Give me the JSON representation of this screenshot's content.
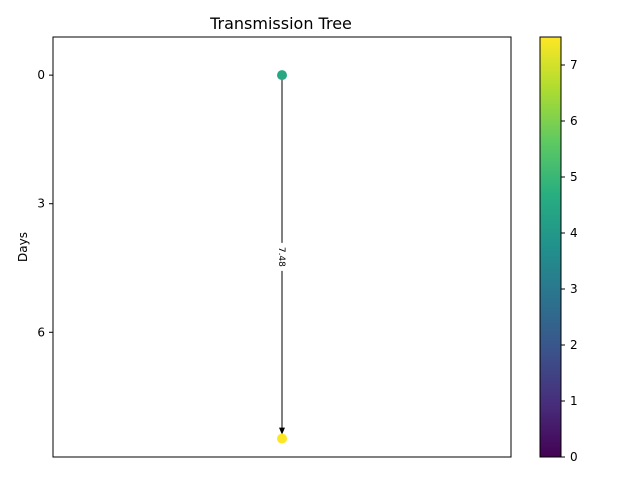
{
  "chart_data": {
    "type": "scatter",
    "title": "Transmission Tree",
    "ylabel": "Days",
    "xlabel": "",
    "y_inverted": true,
    "ylim": [
      8.91,
      -0.89
    ],
    "yticks": [
      0,
      3,
      6
    ],
    "x_axis_shown": false,
    "grid": false,
    "nodes": [
      {
        "id": "a",
        "x": 0,
        "day": 0,
        "color_value": 4.5
      },
      {
        "id": "b",
        "x": 0,
        "day": 8.48,
        "color_value": 7.5
      }
    ],
    "edges": [
      {
        "from": "a",
        "to": "b",
        "label": "7.48",
        "arrow": true
      }
    ],
    "colorbar": {
      "colormap": "viridis",
      "range": [
        0,
        7.5
      ],
      "ticks": [
        0,
        1,
        2,
        3,
        4,
        5,
        6,
        7
      ]
    }
  }
}
